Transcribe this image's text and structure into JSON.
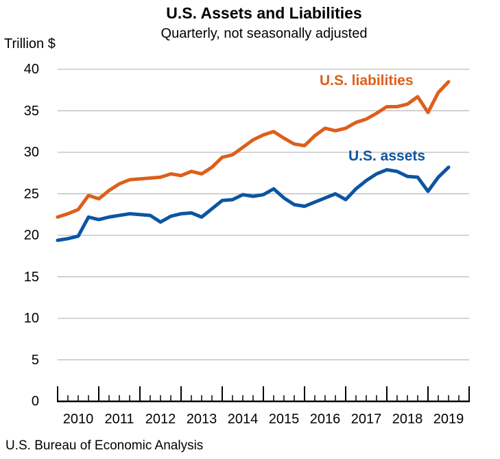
{
  "title": "U.S. Assets and Liabilities",
  "subtitle": "Quarterly, not seasonally adjusted",
  "y_axis_unit_label": "Trillion $",
  "source_note": "U.S. Bureau of Economic Analysis",
  "colors": {
    "liabilities": "#DD5F1B",
    "assets": "#0C55A2",
    "gridline": "#ABABAB",
    "axis": "#000000",
    "text": "#000000"
  },
  "chart_data": {
    "type": "line",
    "title": "U.S. Assets and Liabilities",
    "subtitle": "Quarterly, not seasonally adjusted",
    "xlabel": "",
    "ylabel": "Trillion $",
    "ylim": [
      0,
      40
    ],
    "y_ticks": [
      0,
      5,
      10,
      15,
      20,
      25,
      30,
      35,
      40
    ],
    "grid": "horizontal",
    "legend_position": "inline-labels-on-chart",
    "x_year_labels": [
      "2010",
      "2011",
      "2012",
      "2013",
      "2014",
      "2015",
      "2016",
      "2017",
      "2018",
      "2019"
    ],
    "x": [
      "2009 Q4",
      "2010 Q1",
      "2010 Q2",
      "2010 Q3",
      "2010 Q4",
      "2011 Q1",
      "2011 Q2",
      "2011 Q3",
      "2011 Q4",
      "2012 Q1",
      "2012 Q2",
      "2012 Q3",
      "2012 Q4",
      "2013 Q1",
      "2013 Q2",
      "2013 Q3",
      "2013 Q4",
      "2014 Q1",
      "2014 Q2",
      "2014 Q3",
      "2014 Q4",
      "2015 Q1",
      "2015 Q2",
      "2015 Q3",
      "2015 Q4",
      "2016 Q1",
      "2016 Q2",
      "2016 Q3",
      "2016 Q4",
      "2017 Q1",
      "2017 Q2",
      "2017 Q3",
      "2017 Q4",
      "2018 Q1",
      "2018 Q2",
      "2018 Q3",
      "2018 Q4",
      "2019 Q1",
      "2019 Q2"
    ],
    "series": [
      {
        "name": "U.S. liabilities",
        "color": "#DD5F1B",
        "values": [
          22.2,
          22.6,
          23.1,
          24.8,
          24.4,
          25.4,
          26.2,
          26.7,
          26.8,
          26.9,
          27.0,
          27.4,
          27.2,
          27.7,
          27.4,
          28.2,
          29.4,
          29.7,
          30.6,
          31.5,
          32.1,
          32.5,
          31.7,
          31.0,
          30.8,
          32.0,
          32.9,
          32.6,
          32.9,
          33.6,
          34.0,
          34.7,
          35.5,
          35.5,
          35.8,
          36.7,
          34.8,
          37.2,
          38.5
        ]
      },
      {
        "name": "U.S. assets",
        "color": "#0C55A2",
        "values": [
          19.4,
          19.6,
          19.9,
          22.2,
          21.9,
          22.2,
          22.4,
          22.6,
          22.5,
          22.4,
          21.6,
          22.3,
          22.6,
          22.7,
          22.2,
          23.2,
          24.2,
          24.3,
          24.9,
          24.7,
          24.9,
          25.6,
          24.5,
          23.7,
          23.5,
          24.0,
          24.5,
          25.0,
          24.3,
          25.6,
          26.6,
          27.4,
          27.9,
          27.7,
          27.1,
          27.0,
          25.3,
          27.0,
          28.2
        ]
      }
    ]
  }
}
